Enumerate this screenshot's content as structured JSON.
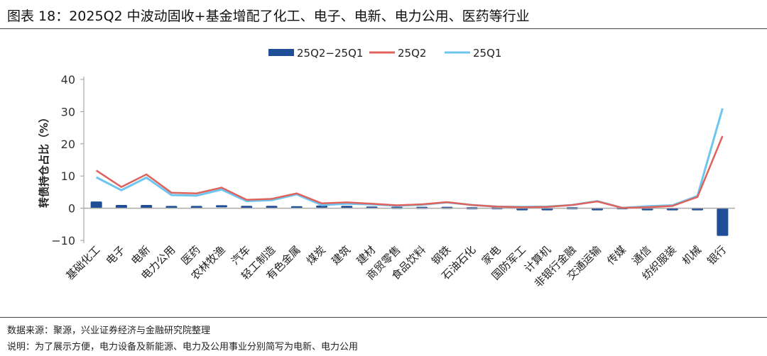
{
  "title": "图表 18：2025Q2 中波动固收+基金增配了化工、电子、电新、电力公用、医药等行业",
  "footer": {
    "source": "数据来源：聚源，兴业证券经济与金融研究院整理",
    "note": "说明：为了展示方便，电力设备及新能源、电力及公用事业分别简写为电新、电力公用"
  },
  "chart_data": {
    "type": "bar+line",
    "title": "",
    "ylabel": "转债持仓占比（%）",
    "xlabel": "",
    "ylim": [
      -10,
      40
    ],
    "yticks": [
      "−10",
      "0",
      "10",
      "20",
      "30",
      "40"
    ],
    "ytick_values": [
      -10,
      0,
      10,
      20,
      30,
      40
    ],
    "grid": false,
    "legend": "top",
    "categories": [
      "基础化工",
      "电子",
      "电新",
      "电力公用",
      "医药",
      "农林牧渔",
      "汽车",
      "轻工制造",
      "有色金属",
      "煤炭",
      "建筑",
      "建材",
      "商贸零售",
      "食品饮料",
      "钢铁",
      "石油石化",
      "家电",
      "国防军工",
      "计算机",
      "非银行金融",
      "交通运输",
      "传媒",
      "通信",
      "纺织服装",
      "机械",
      "银行"
    ],
    "series": [
      {
        "name": "25Q2−25Q1",
        "type": "bar",
        "color": "#1f4e96",
        "values": [
          2.1,
          1.0,
          1.0,
          0.7,
          0.7,
          0.6,
          0.4,
          0.4,
          0.3,
          0.5,
          0.4,
          0.2,
          0.1,
          0.1,
          0.1,
          0.0,
          0.0,
          -0.1,
          -0.1,
          0.0,
          -0.1,
          0.0,
          -0.3,
          -0.2,
          -0.3,
          -8.6
        ]
      },
      {
        "name": "25Q2",
        "type": "line",
        "color": "#e0625c",
        "values": [
          11.7,
          6.6,
          10.5,
          4.8,
          4.6,
          6.4,
          2.6,
          2.9,
          4.6,
          1.5,
          1.8,
          1.4,
          0.9,
          1.2,
          1.9,
          1.0,
          0.5,
          0.3,
          0.4,
          1.0,
          2.1,
          0.1,
          0.3,
          0.7,
          3.5,
          22.4
        ]
      },
      {
        "name": "25Q1",
        "type": "line",
        "color": "#6ec6f0",
        "values": [
          9.6,
          5.6,
          9.5,
          4.1,
          3.9,
          5.8,
          2.2,
          2.5,
          4.3,
          1.0,
          1.4,
          1.2,
          0.8,
          1.1,
          1.8,
          1.0,
          0.5,
          0.4,
          0.5,
          1.0,
          2.2,
          0.1,
          0.6,
          0.9,
          3.8,
          31.0
        ]
      }
    ]
  }
}
